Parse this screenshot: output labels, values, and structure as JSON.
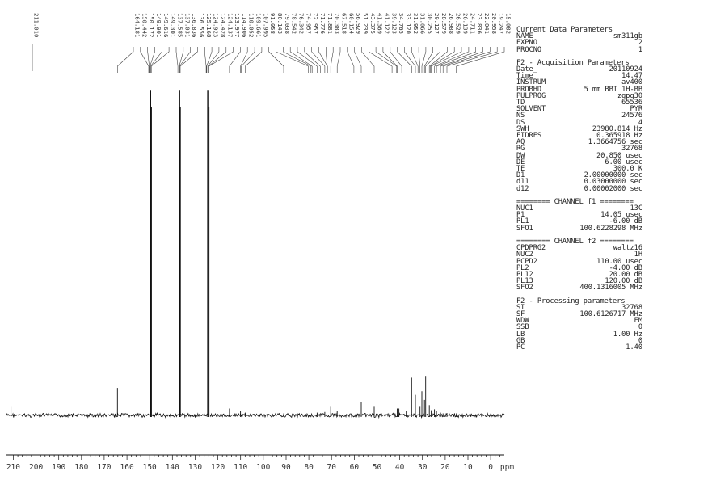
{
  "chart_data": {
    "type": "line",
    "title": "",
    "xlabel": "ppm",
    "ylabel": "",
    "xlim": [
      213,
      -6
    ],
    "x_ticks": [
      210,
      200,
      190,
      180,
      170,
      160,
      150,
      140,
      130,
      120,
      110,
      100,
      90,
      80,
      70,
      60,
      50,
      40,
      30,
      20,
      10,
      0
    ],
    "axis_unit_label": "ppm",
    "peaks": [
      {
        "ppm": 211.01,
        "height": 0.025
      },
      {
        "ppm": 164.181,
        "height": 0.08
      },
      {
        "ppm": 149.616,
        "height": 0.95
      },
      {
        "ppm": 149.301,
        "height": 0.9
      },
      {
        "ppm": 136.836,
        "height": 0.95
      },
      {
        "ppm": 136.556,
        "height": 0.9
      },
      {
        "ppm": 124.428,
        "height": 0.95
      },
      {
        "ppm": 123.977,
        "height": 0.9
      },
      {
        "ppm": 114.906,
        "height": 0.02
      },
      {
        "ppm": 110.052,
        "height": 0.012
      },
      {
        "ppm": 107.995,
        "height": 0.008
      },
      {
        "ppm": 91.058,
        "height": 0.006
      },
      {
        "ppm": 76.342,
        "height": 0.008
      },
      {
        "ppm": 72.957,
        "height": 0.01
      },
      {
        "ppm": 70.383,
        "height": 0.025
      },
      {
        "ppm": 67.518,
        "height": 0.012
      },
      {
        "ppm": 56.929,
        "height": 0.04
      },
      {
        "ppm": 51.239,
        "height": 0.025
      },
      {
        "ppm": 41.122,
        "height": 0.02
      },
      {
        "ppm": 40.369,
        "height": 0.02
      },
      {
        "ppm": 37.123,
        "height": 0.012
      },
      {
        "ppm": 34.765,
        "height": 0.11
      },
      {
        "ppm": 33.12,
        "height": 0.06
      },
      {
        "ppm": 31.066,
        "height": 0.025
      },
      {
        "ppm": 30.255,
        "height": 0.07
      },
      {
        "ppm": 29.127,
        "height": 0.045
      },
      {
        "ppm": 28.579,
        "height": 0.115
      },
      {
        "ppm": 26.988,
        "height": 0.03
      },
      {
        "ppm": 26.139,
        "height": 0.015
      },
      {
        "ppm": 24.711,
        "height": 0.018
      },
      {
        "ppm": 23.836,
        "height": 0.012
      },
      {
        "ppm": 22.041,
        "height": 0.008
      },
      {
        "ppm": 20.958,
        "height": 0.006
      },
      {
        "ppm": 19.247,
        "height": 0.007
      },
      {
        "ppm": 15.082,
        "height": 0.006
      }
    ],
    "peak_labels_left": [
      "211.010"
    ],
    "peak_labels_main": [
      "164.181",
      "150.442",
      "150.172",
      "149.901",
      "149.616",
      "149.301",
      "137.585",
      "137.031",
      "136.836",
      "136.556",
      "125.168",
      "124.923",
      "124.428",
      "124.137",
      "123.977",
      "114.906",
      "110.052",
      "109.661",
      "107.995",
      "91.058",
      "80.143",
      "79.038",
      "78.542",
      "76.342",
      "74.957",
      "72.957",
      "71.776",
      "71.881",
      "70.383",
      "67.518",
      "60.154",
      "56.929",
      "51.239",
      "43.375",
      "41.369",
      "41.122",
      "39.123",
      "34.765",
      "33.120",
      "31.952",
      "31.066",
      "30.255",
      "29.127",
      "28.579",
      "26.988",
      "26.529",
      "26.139",
      "24.711",
      "23.836",
      "22.041",
      "20.958",
      "19.247",
      "15.082"
    ]
  },
  "parameters": {
    "current": {
      "title": "Current Data Parameters",
      "rows": [
        {
          "key": "NAME",
          "value": "sm311gb"
        },
        {
          "key": "EXPNO",
          "value": "2"
        },
        {
          "key": "PROCNO",
          "value": "1"
        }
      ]
    },
    "acquisition": {
      "title": "F2 - Acquisition Parameters",
      "rows": [
        {
          "key": "Date_",
          "value": "20110924"
        },
        {
          "key": "Time",
          "value": "14.47"
        },
        {
          "key": "INSTRUM",
          "value": "av400"
        },
        {
          "key": "PROBHD",
          "value": "5 mm BBI 1H-BB"
        },
        {
          "key": "PULPROG",
          "value": "zgpg30"
        },
        {
          "key": "TD",
          "value": "65536"
        },
        {
          "key": "SOLVENT",
          "value": "PYR"
        },
        {
          "key": "NS",
          "value": "24576"
        },
        {
          "key": "DS",
          "value": "4"
        },
        {
          "key": "SWH",
          "value": "23980.814 Hz"
        },
        {
          "key": "FIDRES",
          "value": "0.365918 Hz"
        },
        {
          "key": "AQ",
          "value": "1.3664756 sec"
        },
        {
          "key": "RG",
          "value": "32768"
        },
        {
          "key": "DW",
          "value": "20.850 usec"
        },
        {
          "key": "DE",
          "value": "6.00 usec"
        },
        {
          "key": "TE",
          "value": "300.0 K"
        },
        {
          "key": "D1",
          "value": "2.00000000 sec"
        },
        {
          "key": "d11",
          "value": "0.03000000 sec"
        },
        {
          "key": "d12",
          "value": "0.00002000 sec"
        }
      ]
    },
    "channel_f1": {
      "title": "======== CHANNEL f1 ========",
      "rows": [
        {
          "key": "NUC1",
          "value": "13C"
        },
        {
          "key": "P1",
          "value": "14.05 usec"
        },
        {
          "key": "PL1",
          "value": "-6.00 dB"
        },
        {
          "key": "SFO1",
          "value": "100.6228298 MHz"
        }
      ]
    },
    "channel_f2": {
      "title": "======== CHANNEL f2 ========",
      "rows": [
        {
          "key": "CPDPRG2",
          "value": "waltz16"
        },
        {
          "key": "NUC2",
          "value": "1H"
        },
        {
          "key": "PCPD2",
          "value": "110.00 usec"
        },
        {
          "key": "PL2",
          "value": "-4.00 dB"
        },
        {
          "key": "PL12",
          "value": "20.00 dB"
        },
        {
          "key": "PL13",
          "value": "120.00 dB"
        },
        {
          "key": "SFO2",
          "value": "400.1316005 MHz"
        }
      ]
    },
    "processing": {
      "title": "F2 - Processing parameters",
      "rows": [
        {
          "key": "SI",
          "value": "32768"
        },
        {
          "key": "SF",
          "value": "100.6126717 MHz"
        },
        {
          "key": "WDW",
          "value": "EM"
        },
        {
          "key": "SSB",
          "value": "0"
        },
        {
          "key": "LB",
          "value": "1.00 Hz"
        },
        {
          "key": "GB",
          "value": "0"
        },
        {
          "key": "PC",
          "value": "1.40"
        }
      ]
    }
  }
}
